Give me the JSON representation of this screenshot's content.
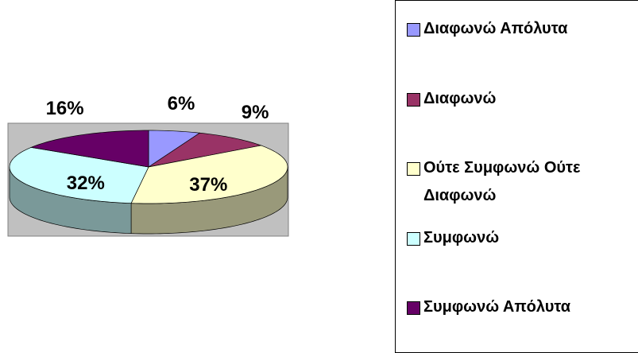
{
  "chart_data": {
    "type": "pie3d",
    "categories": [
      "Διαφωνώ Απόλυτα",
      "Διαφωνώ",
      "Ούτε Συμφωνώ Ούτε Διαφωνώ",
      "Συμφωνώ",
      "Συμφωνώ Απόλυτα"
    ],
    "values": [
      6,
      9,
      37,
      32,
      16
    ],
    "value_labels": [
      "6%",
      "9%",
      "37%",
      "32%",
      "16%"
    ],
    "colors": [
      "#9999ff",
      "#993366",
      "#ffffcc",
      "#ccffff",
      "#660066"
    ],
    "legend": "right"
  }
}
